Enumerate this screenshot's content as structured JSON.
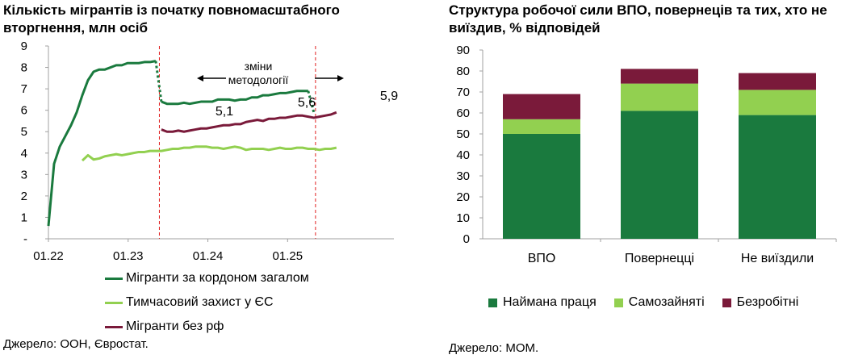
{
  "chart_data": [
    {
      "type": "line",
      "title": "Кількість мігрантів із початку повномасштабного вторгнення, млн осіб",
      "x_tick_labels": [
        "01.22",
        "01.23",
        "01.24",
        "01.25"
      ],
      "y_tick_labels": [
        "-",
        "1",
        "2",
        "3",
        "4",
        "5",
        "6",
        "7",
        "8",
        "9"
      ],
      "ylim": [
        0,
        9
      ],
      "annotation": "зміни методології",
      "data_labels": [
        "5,1",
        "5,6",
        "5,9"
      ],
      "series": [
        {
          "name": "Мігранти за кордоном загалом",
          "color": "#1a7a3e",
          "segments": [
            [
              [
                0,
                0.6
              ],
              [
                1,
                3.5
              ],
              [
                2,
                4.3
              ],
              [
                3,
                4.8
              ],
              [
                4,
                5.3
              ],
              [
                5,
                5.9
              ],
              [
                6,
                6.7
              ],
              [
                7,
                7.4
              ],
              [
                8,
                7.8
              ],
              [
                9,
                7.9
              ],
              [
                10,
                7.9
              ],
              [
                11,
                8.0
              ],
              [
                12,
                8.1
              ],
              [
                13,
                8.1
              ],
              [
                14,
                8.2
              ],
              [
                15,
                8.2
              ],
              [
                16,
                8.2
              ],
              [
                17,
                8.25
              ],
              [
                18,
                8.25
              ],
              [
                19,
                8.3
              ]
            ],
            [
              [
                20,
                6.4
              ],
              [
                21,
                6.3
              ],
              [
                22,
                6.3
              ],
              [
                23,
                6.3
              ],
              [
                24,
                6.35
              ],
              [
                25,
                6.3
              ],
              [
                26,
                6.35
              ],
              [
                27,
                6.4
              ],
              [
                28,
                6.4
              ],
              [
                29,
                6.4
              ],
              [
                30,
                6.5
              ],
              [
                31,
                6.5
              ],
              [
                32,
                6.5
              ],
              [
                33,
                6.45
              ],
              [
                34,
                6.5
              ],
              [
                35,
                6.5
              ],
              [
                36,
                6.6
              ],
              [
                37,
                6.6
              ],
              [
                38,
                6.7
              ],
              [
                39,
                6.7
              ],
              [
                40,
                6.75
              ],
              [
                41,
                6.8
              ],
              [
                42,
                6.8
              ],
              [
                43,
                6.85
              ],
              [
                44,
                6.9
              ],
              [
                45,
                6.9
              ],
              [
                46,
                6.9
              ]
            ]
          ],
          "breaks": [
            [
              [
                19,
                8.3
              ],
              [
                20,
                6.4
              ]
            ],
            [
              [
                46,
                6.9
              ],
              [
                47,
                5.9
              ]
            ]
          ]
        },
        {
          "name": "Тимчасовий захист у ЄС",
          "color": "#92d050",
          "segments": [
            [
              [
                6,
                3.65
              ],
              [
                7,
                3.9
              ],
              [
                8,
                3.7
              ],
              [
                9,
                3.75
              ],
              [
                10,
                3.85
              ],
              [
                11,
                3.9
              ],
              [
                12,
                3.95
              ],
              [
                13,
                3.9
              ],
              [
                14,
                3.95
              ],
              [
                15,
                4.0
              ],
              [
                16,
                4.05
              ],
              [
                17,
                4.05
              ],
              [
                18,
                4.1
              ],
              [
                19,
                4.1
              ],
              [
                20,
                4.1
              ],
              [
                21,
                4.15
              ],
              [
                22,
                4.2
              ],
              [
                23,
                4.2
              ],
              [
                24,
                4.25
              ],
              [
                25,
                4.25
              ],
              [
                26,
                4.3
              ],
              [
                27,
                4.3
              ],
              [
                28,
                4.3
              ],
              [
                29,
                4.25
              ],
              [
                30,
                4.25
              ],
              [
                31,
                4.2
              ],
              [
                32,
                4.25
              ],
              [
                33,
                4.3
              ],
              [
                34,
                4.25
              ],
              [
                35,
                4.15
              ],
              [
                36,
                4.2
              ],
              [
                37,
                4.2
              ],
              [
                38,
                4.2
              ],
              [
                39,
                4.15
              ],
              [
                40,
                4.2
              ],
              [
                41,
                4.25
              ],
              [
                42,
                4.2
              ],
              [
                43,
                4.2
              ],
              [
                44,
                4.25
              ],
              [
                45,
                4.25
              ],
              [
                46,
                4.2
              ],
              [
                47,
                4.2
              ],
              [
                48,
                4.15
              ],
              [
                49,
                4.2
              ],
              [
                50,
                4.2
              ],
              [
                51,
                4.25
              ]
            ]
          ]
        },
        {
          "name": "Мігранти без рф",
          "color": "#7a1a3a",
          "segments": [
            [
              [
                20,
                5.1
              ],
              [
                21,
                5.0
              ],
              [
                22,
                5.0
              ],
              [
                23,
                5.05
              ],
              [
                24,
                5.0
              ],
              [
                25,
                5.05
              ],
              [
                26,
                5.1
              ],
              [
                27,
                5.15
              ],
              [
                28,
                5.15
              ],
              [
                29,
                5.2
              ],
              [
                30,
                5.25
              ],
              [
                31,
                5.3
              ],
              [
                32,
                5.3
              ],
              [
                33,
                5.35
              ],
              [
                34,
                5.35
              ],
              [
                35,
                5.45
              ],
              [
                36,
                5.5
              ],
              [
                37,
                5.55
              ],
              [
                38,
                5.5
              ],
              [
                39,
                5.6
              ],
              [
                40,
                5.6
              ],
              [
                41,
                5.65
              ],
              [
                42,
                5.65
              ],
              [
                43,
                5.7
              ],
              [
                44,
                5.75
              ],
              [
                45,
                5.75
              ],
              [
                46,
                5.7
              ],
              [
                47,
                5.65
              ],
              [
                48,
                5.7
              ],
              [
                49,
                5.75
              ],
              [
                50,
                5.8
              ],
              [
                51,
                5.9
              ]
            ]
          ]
        }
      ],
      "vertical_markers": [
        "01.2023 end",
        "mid 2025"
      ]
    },
    {
      "type": "bar",
      "stacked": true,
      "title": "Структура робочої сили ВПО, повернеців та тих, хто не виїздив, % відповідей",
      "categories": [
        "ВПО",
        "Повернецці",
        "Не виїздили"
      ],
      "y_tick_labels": [
        "0",
        "10",
        "20",
        "30",
        "40",
        "50",
        "60",
        "70",
        "80",
        "90"
      ],
      "ylim": [
        0,
        90
      ],
      "series": [
        {
          "name": "Наймана праця",
          "color": "#1a7a3e",
          "values": [
            50,
            61,
            59
          ]
        },
        {
          "name": "Самозайняті",
          "color": "#92d050",
          "values": [
            7,
            13,
            12
          ]
        },
        {
          "name": "Безробітні",
          "color": "#7a1a3a",
          "values": [
            12,
            7,
            8
          ]
        }
      ]
    }
  ],
  "sources": {
    "left": "Джерело: ООН, Євростат.",
    "right": "Джерело: МОМ."
  }
}
